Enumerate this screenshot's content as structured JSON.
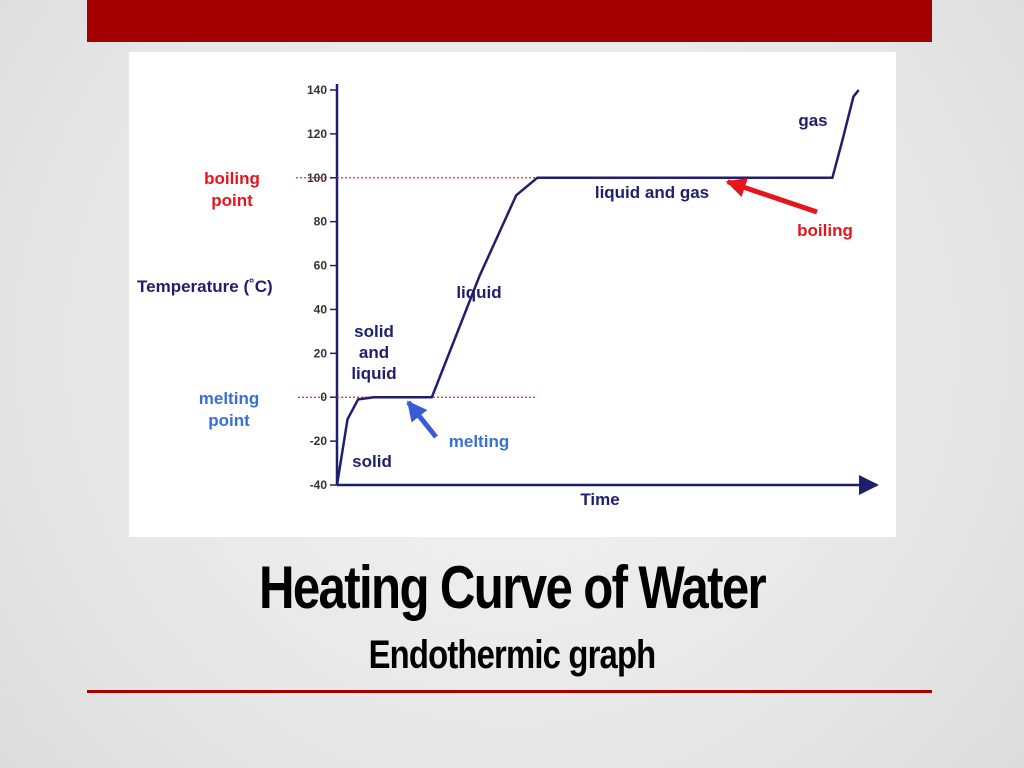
{
  "slide": {
    "title": "Heating Curve of Water",
    "subtitle": "Endothermic graph",
    "accent_color": "#a50000"
  },
  "chart_data": {
    "type": "line",
    "title": "",
    "xlabel": "Time",
    "ylabel": "Temperature (˚C)",
    "ylim": [
      -40,
      140
    ],
    "y_ticks": [
      140,
      120,
      100,
      80,
      60,
      40,
      20,
      0,
      -20,
      -40
    ],
    "grid": false,
    "line_color": "#1f1f6e",
    "series": [
      {
        "values": [
          {
            "t": 0,
            "y": -40
          },
          {
            "t": 2,
            "y": -10
          },
          {
            "t": 4,
            "y": -1
          },
          {
            "t": 7,
            "y": 0
          },
          {
            "t": 18,
            "y": 0
          },
          {
            "t": 27,
            "y": 55
          },
          {
            "t": 34,
            "y": 92
          },
          {
            "t": 38,
            "y": 100
          },
          {
            "t": 94,
            "y": 100
          },
          {
            "t": 96,
            "y": 118
          },
          {
            "t": 98,
            "y": 137
          },
          {
            "t": 99,
            "y": 140
          }
        ]
      }
    ],
    "reference_lines": [
      {
        "label": "boiling point",
        "y": 100,
        "color": "#ff2020"
      },
      {
        "label": "melting point",
        "y": 0,
        "color": "#ff2020"
      }
    ],
    "annotations": {
      "boiling_point_label": [
        "boiling",
        "point"
      ],
      "melting_point_label": [
        "melting",
        "point"
      ],
      "phase_solid": "solid",
      "phase_solid_liquid": [
        "solid",
        "and",
        "liquid"
      ],
      "phase_liquid": "liquid",
      "phase_liquid_gas": "liquid and gas",
      "phase_gas": "gas",
      "arrow_melting": {
        "label": "melting",
        "color": "#3a5bd8",
        "points_to_t": 12,
        "points_to_y": 0
      },
      "arrow_boiling": {
        "label": "boiling",
        "color": "#e8141b",
        "points_to_t": 73,
        "points_to_y": 100
      }
    },
    "label_colors": {
      "reference": "#e8141b",
      "melting": "#3a6fd8",
      "phase": "#1f1f6e"
    }
  }
}
